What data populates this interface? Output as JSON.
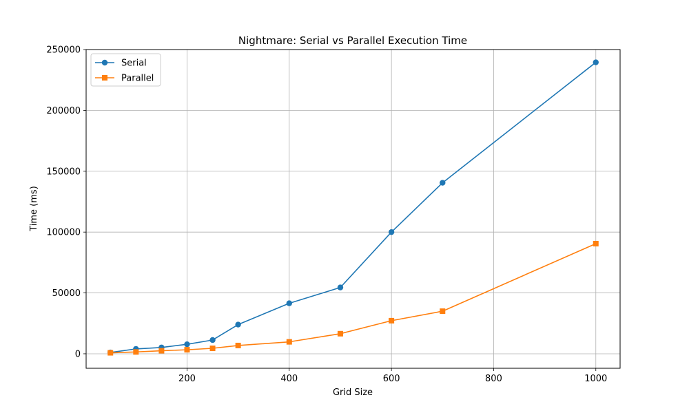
{
  "chart_data": {
    "type": "line",
    "title": "Nightmare: Serial vs Parallel Execution Time",
    "xlabel": "Grid Size",
    "ylabel": "Time (ms)",
    "x": [
      50,
      100,
      150,
      200,
      250,
      300,
      400,
      500,
      600,
      700,
      1000
    ],
    "series": [
      {
        "name": "Serial",
        "color": "#1f77b4",
        "marker": "circle",
        "values": [
          1100,
          4000,
          5200,
          7800,
          11300,
          24000,
          41500,
          54500,
          100000,
          140500,
          239500
        ]
      },
      {
        "name": "Parallel",
        "color": "#ff7f0e",
        "marker": "square",
        "values": [
          800,
          1500,
          2500,
          3300,
          4500,
          6800,
          9800,
          16500,
          27200,
          35000,
          90500
        ]
      }
    ],
    "xlim": [
      2.5,
      1047.5
    ],
    "ylim": [
      -11900,
      250000
    ],
    "xticks": [
      200,
      400,
      600,
      800,
      1000
    ],
    "yticks": [
      0,
      50000,
      100000,
      150000,
      200000,
      250000
    ],
    "grid": true,
    "legend_position": "top-left"
  }
}
